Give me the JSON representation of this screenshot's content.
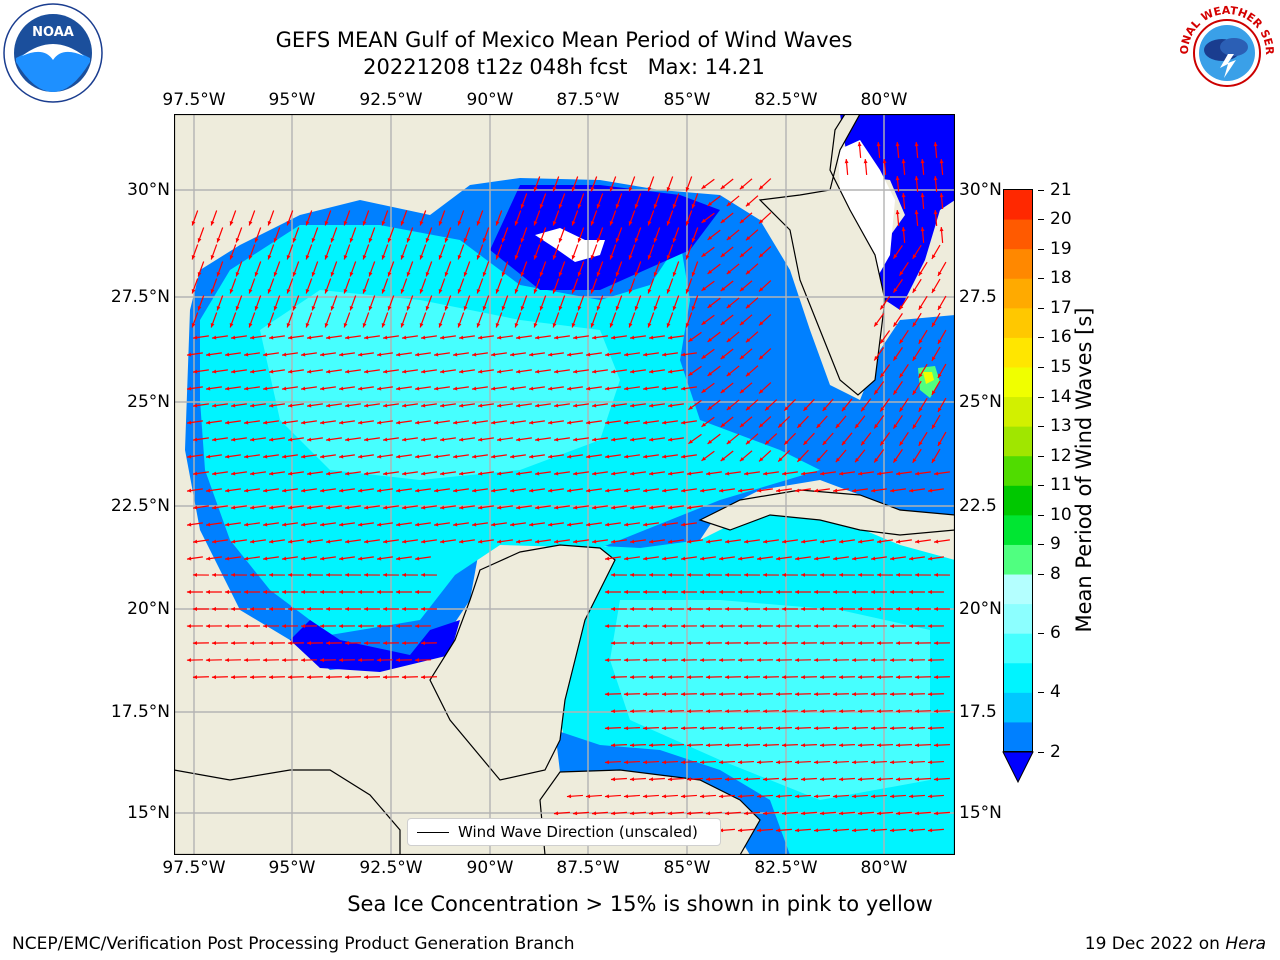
{
  "header": {
    "title_line1": "GEFS MEAN Gulf of Mexico Mean Period of Wind Waves",
    "title_line2": "20221208 t12z 048h fcst   Max: 14.21",
    "left_logo_text": "NOAA",
    "right_logo_text": "NATIONAL WEATHER SERVICE"
  },
  "map": {
    "lon_ticks": [
      "97.5°W",
      "95°W",
      "92.5°W",
      "90°W",
      "87.5°W",
      "85°W",
      "82.5°W",
      "80°W"
    ],
    "lat_ticks_left": [
      "30°N",
      "27.5°N",
      "25°N",
      "22.5°N",
      "20°N",
      "17.5°N",
      "15°N"
    ],
    "lat_ticks_right": [
      "30°N",
      "27.5",
      "25°N",
      "22.5",
      "20°N",
      "17.5",
      "15°N"
    ],
    "legend_label": "Wind Wave Direction (unscaled)",
    "colors": {
      "land": "#eeecdc",
      "ocean_blank": "#ffffff",
      "arrows": "#ff0000",
      "grid": "#b3b3b3"
    }
  },
  "colorbar": {
    "label": "Mean Period of Wind Waves [s]",
    "tick_labels": [
      "2",
      "4",
      "6",
      "8",
      "9",
      "10",
      "11",
      "12",
      "13",
      "14",
      "15",
      "16",
      "17",
      "18",
      "19",
      "20",
      "21"
    ],
    "levels": [
      2,
      3,
      4,
      5,
      6,
      7,
      8,
      9,
      10,
      11,
      12,
      13,
      14,
      15,
      16,
      17,
      18,
      19,
      20,
      21
    ],
    "colors": [
      "#0080ff",
      "#00c8ff",
      "#00f4ff",
      "#46ffff",
      "#8cffff",
      "#b4ffff",
      "#50ff80",
      "#00e632",
      "#00c800",
      "#50dc00",
      "#a0e600",
      "#d2f000",
      "#f0ff00",
      "#ffe600",
      "#ffc800",
      "#ffaa00",
      "#ff8800",
      "#ff5a00",
      "#ff2800"
    ],
    "extend_color": "#0000ff"
  },
  "footer": {
    "note": "Sea Ice Concentration > 15% is shown in pink to yellow",
    "left": "NCEP/EMC/Verification Post Processing Product Generation Branch",
    "right_prefix": "19 Dec 2022 on ",
    "right_machine": "Hera"
  }
}
